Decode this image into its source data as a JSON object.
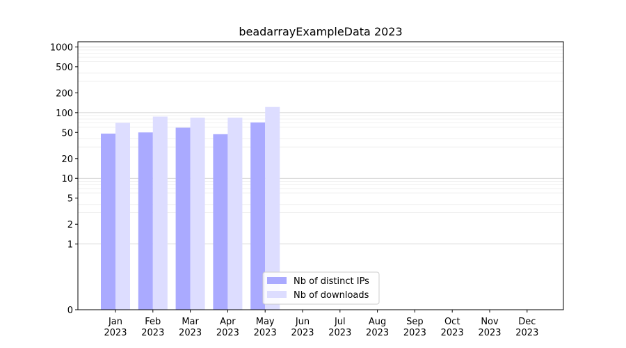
{
  "chart_data": {
    "type": "bar",
    "title": "beadarrayExampleData 2023",
    "xlabel": "",
    "ylabel": "",
    "y_scale": "symlog",
    "ylim": [
      0,
      1200
    ],
    "y_ticks": [
      {
        "value": 0,
        "label": "0"
      },
      {
        "value": 1,
        "label": "1"
      },
      {
        "value": 2,
        "label": "2"
      },
      {
        "value": 5,
        "label": "5"
      },
      {
        "value": 10,
        "label": "10"
      },
      {
        "value": 20,
        "label": "20"
      },
      {
        "value": 50,
        "label": "50"
      },
      {
        "value": 100,
        "label": "100"
      },
      {
        "value": 200,
        "label": "200"
      },
      {
        "value": 500,
        "label": "500"
      },
      {
        "value": 1000,
        "label": "1000"
      }
    ],
    "categories": [
      {
        "month": "Jan",
        "year": "2023"
      },
      {
        "month": "Feb",
        "year": "2023"
      },
      {
        "month": "Mar",
        "year": "2023"
      },
      {
        "month": "Apr",
        "year": "2023"
      },
      {
        "month": "May",
        "year": "2023"
      },
      {
        "month": "Jun",
        "year": "2023"
      },
      {
        "month": "Jul",
        "year": "2023"
      },
      {
        "month": "Aug",
        "year": "2023"
      },
      {
        "month": "Sep",
        "year": "2023"
      },
      {
        "month": "Oct",
        "year": "2023"
      },
      {
        "month": "Nov",
        "year": "2023"
      },
      {
        "month": "Dec",
        "year": "2023"
      }
    ],
    "series": [
      {
        "name": "Nb of distinct IPs",
        "color": "#aaaaff",
        "values": [
          48,
          50,
          59,
          47,
          71,
          null,
          null,
          null,
          null,
          null,
          null,
          null
        ]
      },
      {
        "name": "Nb of downloads",
        "color": "#ddddff",
        "values": [
          70,
          87,
          84,
          84,
          122,
          null,
          null,
          null,
          null,
          null,
          null,
          null
        ]
      }
    ],
    "grid": {
      "major_color": "#c8c8c8",
      "minor_color": "#ececec"
    },
    "legend": {
      "position": "lower-center"
    }
  }
}
